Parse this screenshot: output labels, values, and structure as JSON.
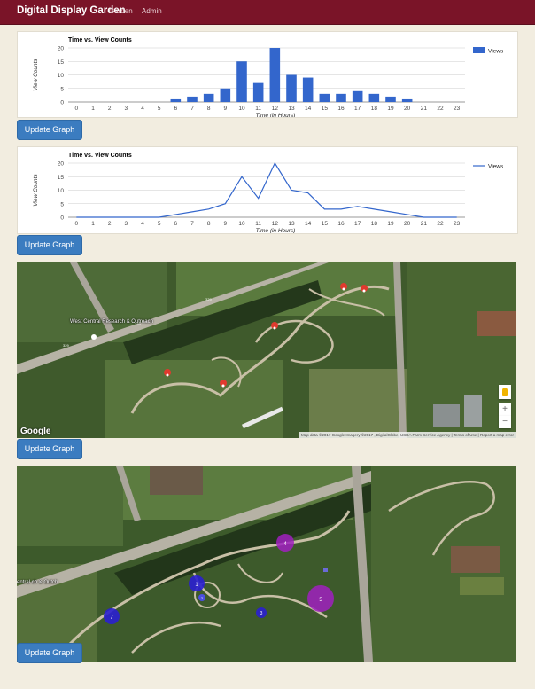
{
  "navbar": {
    "brand": "Digital Display Garden",
    "links": [
      "Garden",
      "Admin"
    ]
  },
  "buttons": {
    "update_graph": "Update Graph"
  },
  "chart_data": [
    {
      "type": "bar",
      "title": "Time vs. View Counts",
      "xlabel": "Time (in Hours)",
      "ylabel": "View Counts",
      "ylim": [
        0,
        20
      ],
      "yticks": [
        0,
        5,
        10,
        15,
        20
      ],
      "categories": [
        "0",
        "1",
        "2",
        "3",
        "4",
        "5",
        "6",
        "7",
        "8",
        "9",
        "10",
        "11",
        "12",
        "13",
        "14",
        "15",
        "16",
        "17",
        "18",
        "19",
        "20",
        "21",
        "22",
        "23"
      ],
      "series": [
        {
          "name": "Views",
          "values": [
            0,
            0,
            0,
            0,
            0,
            0,
            1,
            2,
            3,
            5,
            15,
            7,
            20,
            10,
            9,
            3,
            3,
            4,
            3,
            2,
            1,
            0,
            0,
            0
          ]
        }
      ],
      "legend": "right",
      "color": "#3366cc"
    },
    {
      "type": "line",
      "title": "Time vs. View Counts",
      "xlabel": "Time (in Hours)",
      "ylabel": "View Counts",
      "ylim": [
        0,
        20
      ],
      "yticks": [
        0,
        5,
        10,
        15,
        20
      ],
      "categories": [
        "0",
        "1",
        "2",
        "3",
        "4",
        "5",
        "6",
        "7",
        "8",
        "9",
        "10",
        "11",
        "12",
        "13",
        "14",
        "15",
        "16",
        "17",
        "18",
        "19",
        "20",
        "21",
        "22",
        "23"
      ],
      "series": [
        {
          "name": "Views",
          "values": [
            0,
            0,
            0,
            0,
            0,
            0,
            1,
            2,
            3,
            5,
            15,
            7,
            20,
            10,
            9,
            3,
            3,
            4,
            3,
            2,
            1,
            0,
            0,
            0
          ]
        }
      ],
      "legend": "right",
      "color": "#3366cc"
    }
  ],
  "map1": {
    "logo": "Google",
    "attribution": "Map data ©2017 Google Imagery ©2017 , DigitalGlobe, USDA Farm Service Agency  |  Terms of Use  |  Report a map error",
    "place_label": "West Central Research & Outreach",
    "road_labels": [
      "329",
      "329",
      "329"
    ],
    "zoom_in": "+",
    "zoom_out": "−"
  },
  "map2": {
    "place_label": "entral ch & Outch",
    "clusters": [
      {
        "label": "1",
        "color": "#2a1fd0"
      },
      {
        "label": "2",
        "color": "#2a1fd0"
      },
      {
        "label": "3",
        "color": "#2a1fd0"
      },
      {
        "label": "4",
        "color": "#a020c0"
      },
      {
        "label": "5",
        "color": "#a020c0"
      },
      {
        "label": "7",
        "color": "#2a1fd0"
      }
    ]
  }
}
